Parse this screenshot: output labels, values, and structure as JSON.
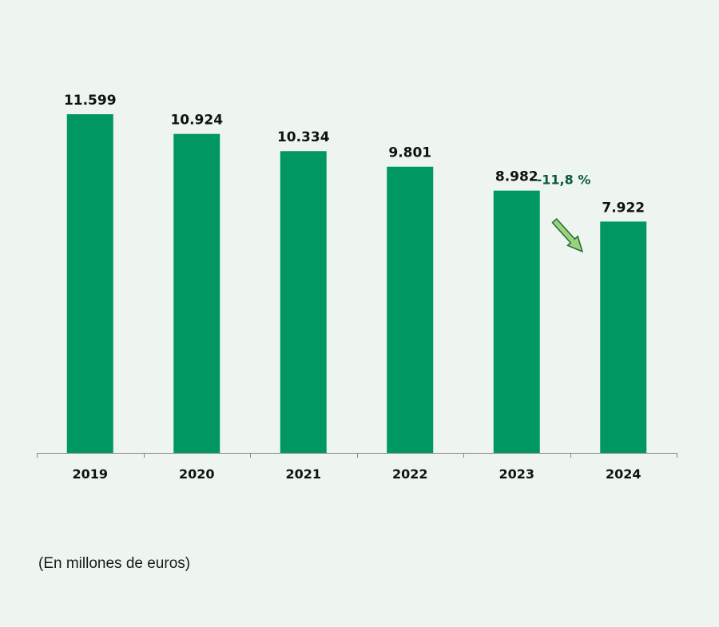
{
  "colors": {
    "background": "#eef5f0",
    "bar": "#009760",
    "axis": "#888888",
    "change_text": "#0b5a3c",
    "arrow_fill": "#9fd07a",
    "arrow_stroke": "#1f6a3a"
  },
  "chart_data": {
    "type": "bar",
    "categories": [
      "2019",
      "2020",
      "2021",
      "2022",
      "2023",
      "2024"
    ],
    "values": [
      11599,
      10924,
      10334,
      9801,
      8982,
      7922
    ],
    "value_labels": [
      "11.599",
      "10.924",
      "10.334",
      "9.801",
      "8.982",
      "7.922"
    ],
    "ylim": [
      0,
      11599
    ],
    "grid": false,
    "legend": "none",
    "annotations": [
      {
        "text": "-11,8 %",
        "from_category": "2023",
        "to_category": "2024",
        "icon": "down-right-arrow-icon"
      }
    ]
  },
  "footnote": "(En millones de euros)"
}
